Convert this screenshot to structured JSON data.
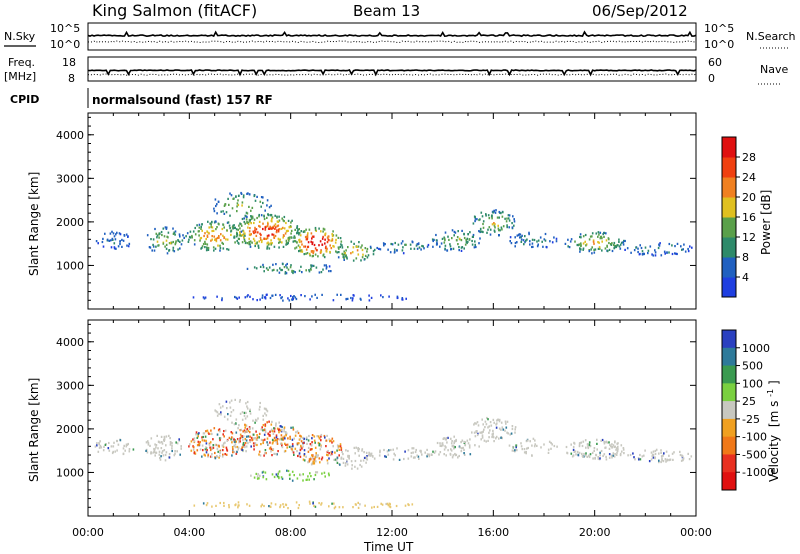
{
  "header": {
    "station": "King Salmon (fitACF)",
    "beam": "Beam 13",
    "date": "06/Sep/2012"
  },
  "nsky_panel": {
    "left_label": "N.Sky",
    "right_label": "N.Search",
    "left_ticks": [
      "10^5",
      "10^0"
    ],
    "right_ticks": [
      "10^5",
      "10^0"
    ]
  },
  "freq_panel": {
    "left_label_1": "Freq.",
    "left_label_2": "[MHz]",
    "right_label": "Nave",
    "left_ticks": [
      "18",
      "8"
    ],
    "right_ticks": [
      "60",
      "0"
    ]
  },
  "cpid": {
    "label": "CPID",
    "value": "normalsound (fast) 157 RF"
  },
  "chart_data": [
    {
      "type": "heatmap",
      "ylabel": "Slant Range [km]",
      "y_ticks": [
        "1000",
        "2000",
        "3000",
        "4000"
      ],
      "ylim": [
        0,
        4500
      ],
      "xlim_hours": [
        0,
        24
      ],
      "colorbar": {
        "label": "Power [dB]",
        "ticks": [
          "4",
          "8",
          "12",
          "16",
          "20",
          "24",
          "28"
        ],
        "colors": [
          "#1f3fe0",
          "#2060c0",
          "#2e8a6a",
          "#5aa04a",
          "#e0c020",
          "#f08020",
          "#f04010",
          "#e01010"
        ]
      }
    },
    {
      "type": "heatmap",
      "ylabel": "Slant Range [km]",
      "y_ticks": [
        "1000",
        "2000",
        "3000",
        "4000"
      ],
      "ylim": [
        0,
        4500
      ],
      "xlim_hours": [
        0,
        24
      ],
      "x_ticks": [
        "00:00",
        "04:00",
        "08:00",
        "12:00",
        "16:00",
        "20:00",
        "00:00"
      ],
      "xlabel": "Time UT",
      "colorbar": {
        "label_main": "Velocity",
        "label_unit": "[m s",
        "label_exp": "-1",
        "label_close": "]",
        "ticks": [
          "1000",
          "500",
          "100",
          "25",
          "-25",
          "-100",
          "-500",
          "-1000"
        ],
        "colors": [
          "#2a40c0",
          "#2e7a9a",
          "#3a9a50",
          "#7ad040",
          "#c8c8c0",
          "#f0a020",
          "#f07818",
          "#e83020",
          "#e01010"
        ]
      }
    }
  ]
}
